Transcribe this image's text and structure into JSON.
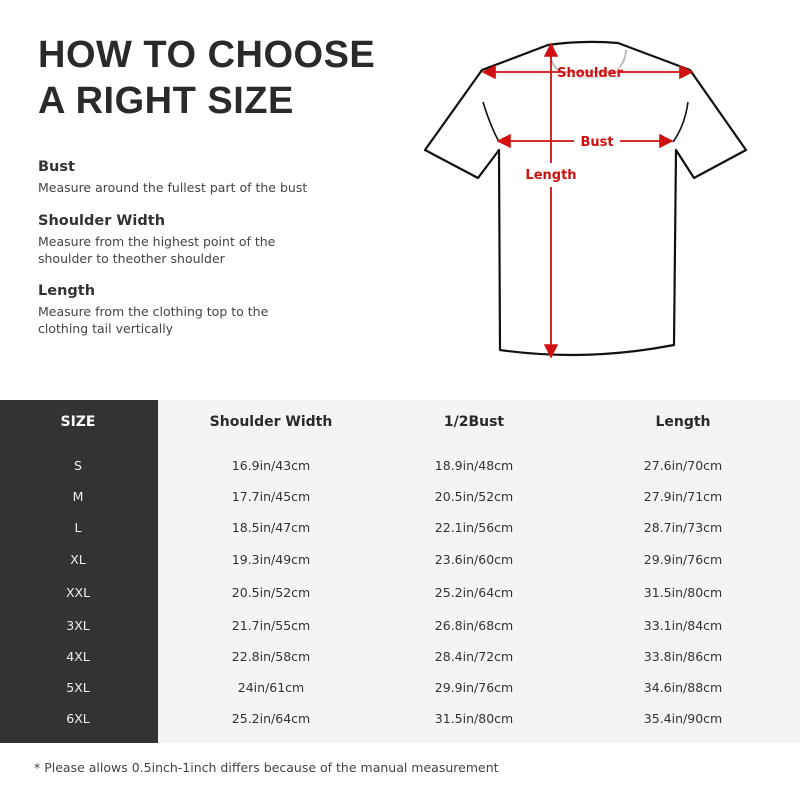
{
  "title_lines": [
    "HOW TO CHOOSE",
    "A RIGHT SIZE"
  ],
  "definitions": [
    {
      "term": "Bust",
      "desc": "Measure around the fullest part of the bust"
    },
    {
      "term": "Shoulder Width",
      "desc": "Measure from the highest point of the shoulder to theother shoulder"
    },
    {
      "term": "Length",
      "desc": "Measure from the clothing top to the clothing tail vertically"
    }
  ],
  "diagram": {
    "shoulder_label": "Shoulder",
    "bust_label": "Bust",
    "length_label": "Length",
    "arrow_color": "#d01010"
  },
  "table": {
    "headers": [
      "SIZE",
      "Shoulder Width",
      "1/2Bust",
      "Length"
    ],
    "rows": [
      [
        "S",
        "16.9in/43cm",
        "18.9in/48cm",
        "27.6in/70cm"
      ],
      [
        "M",
        "17.7in/45cm",
        "20.5in/52cm",
        "27.9in/71cm"
      ],
      [
        "L",
        "18.5in/47cm",
        "22.1in/56cm",
        "28.7in/73cm"
      ],
      [
        "XL",
        "19.3in/49cm",
        "23.6in/60cm",
        "29.9in/76cm"
      ],
      [
        "XXL",
        "20.5in/52cm",
        "25.2in/64cm",
        "31.5in/80cm"
      ],
      [
        "3XL",
        "21.7in/55cm",
        "26.8in/68cm",
        "33.1in/84cm"
      ],
      [
        "4XL",
        "22.8in/58cm",
        "28.4in/72cm",
        "33.8in/86cm"
      ],
      [
        "5XL",
        "24in/61cm",
        "29.9in/76cm",
        "34.6in/88cm"
      ],
      [
        "6XL",
        "25.2in/64cm",
        "31.5in/80cm",
        "35.4in/90cm"
      ]
    ]
  },
  "note": "* Please allows 0.5inch-1inch differs because of the  manual measurement"
}
